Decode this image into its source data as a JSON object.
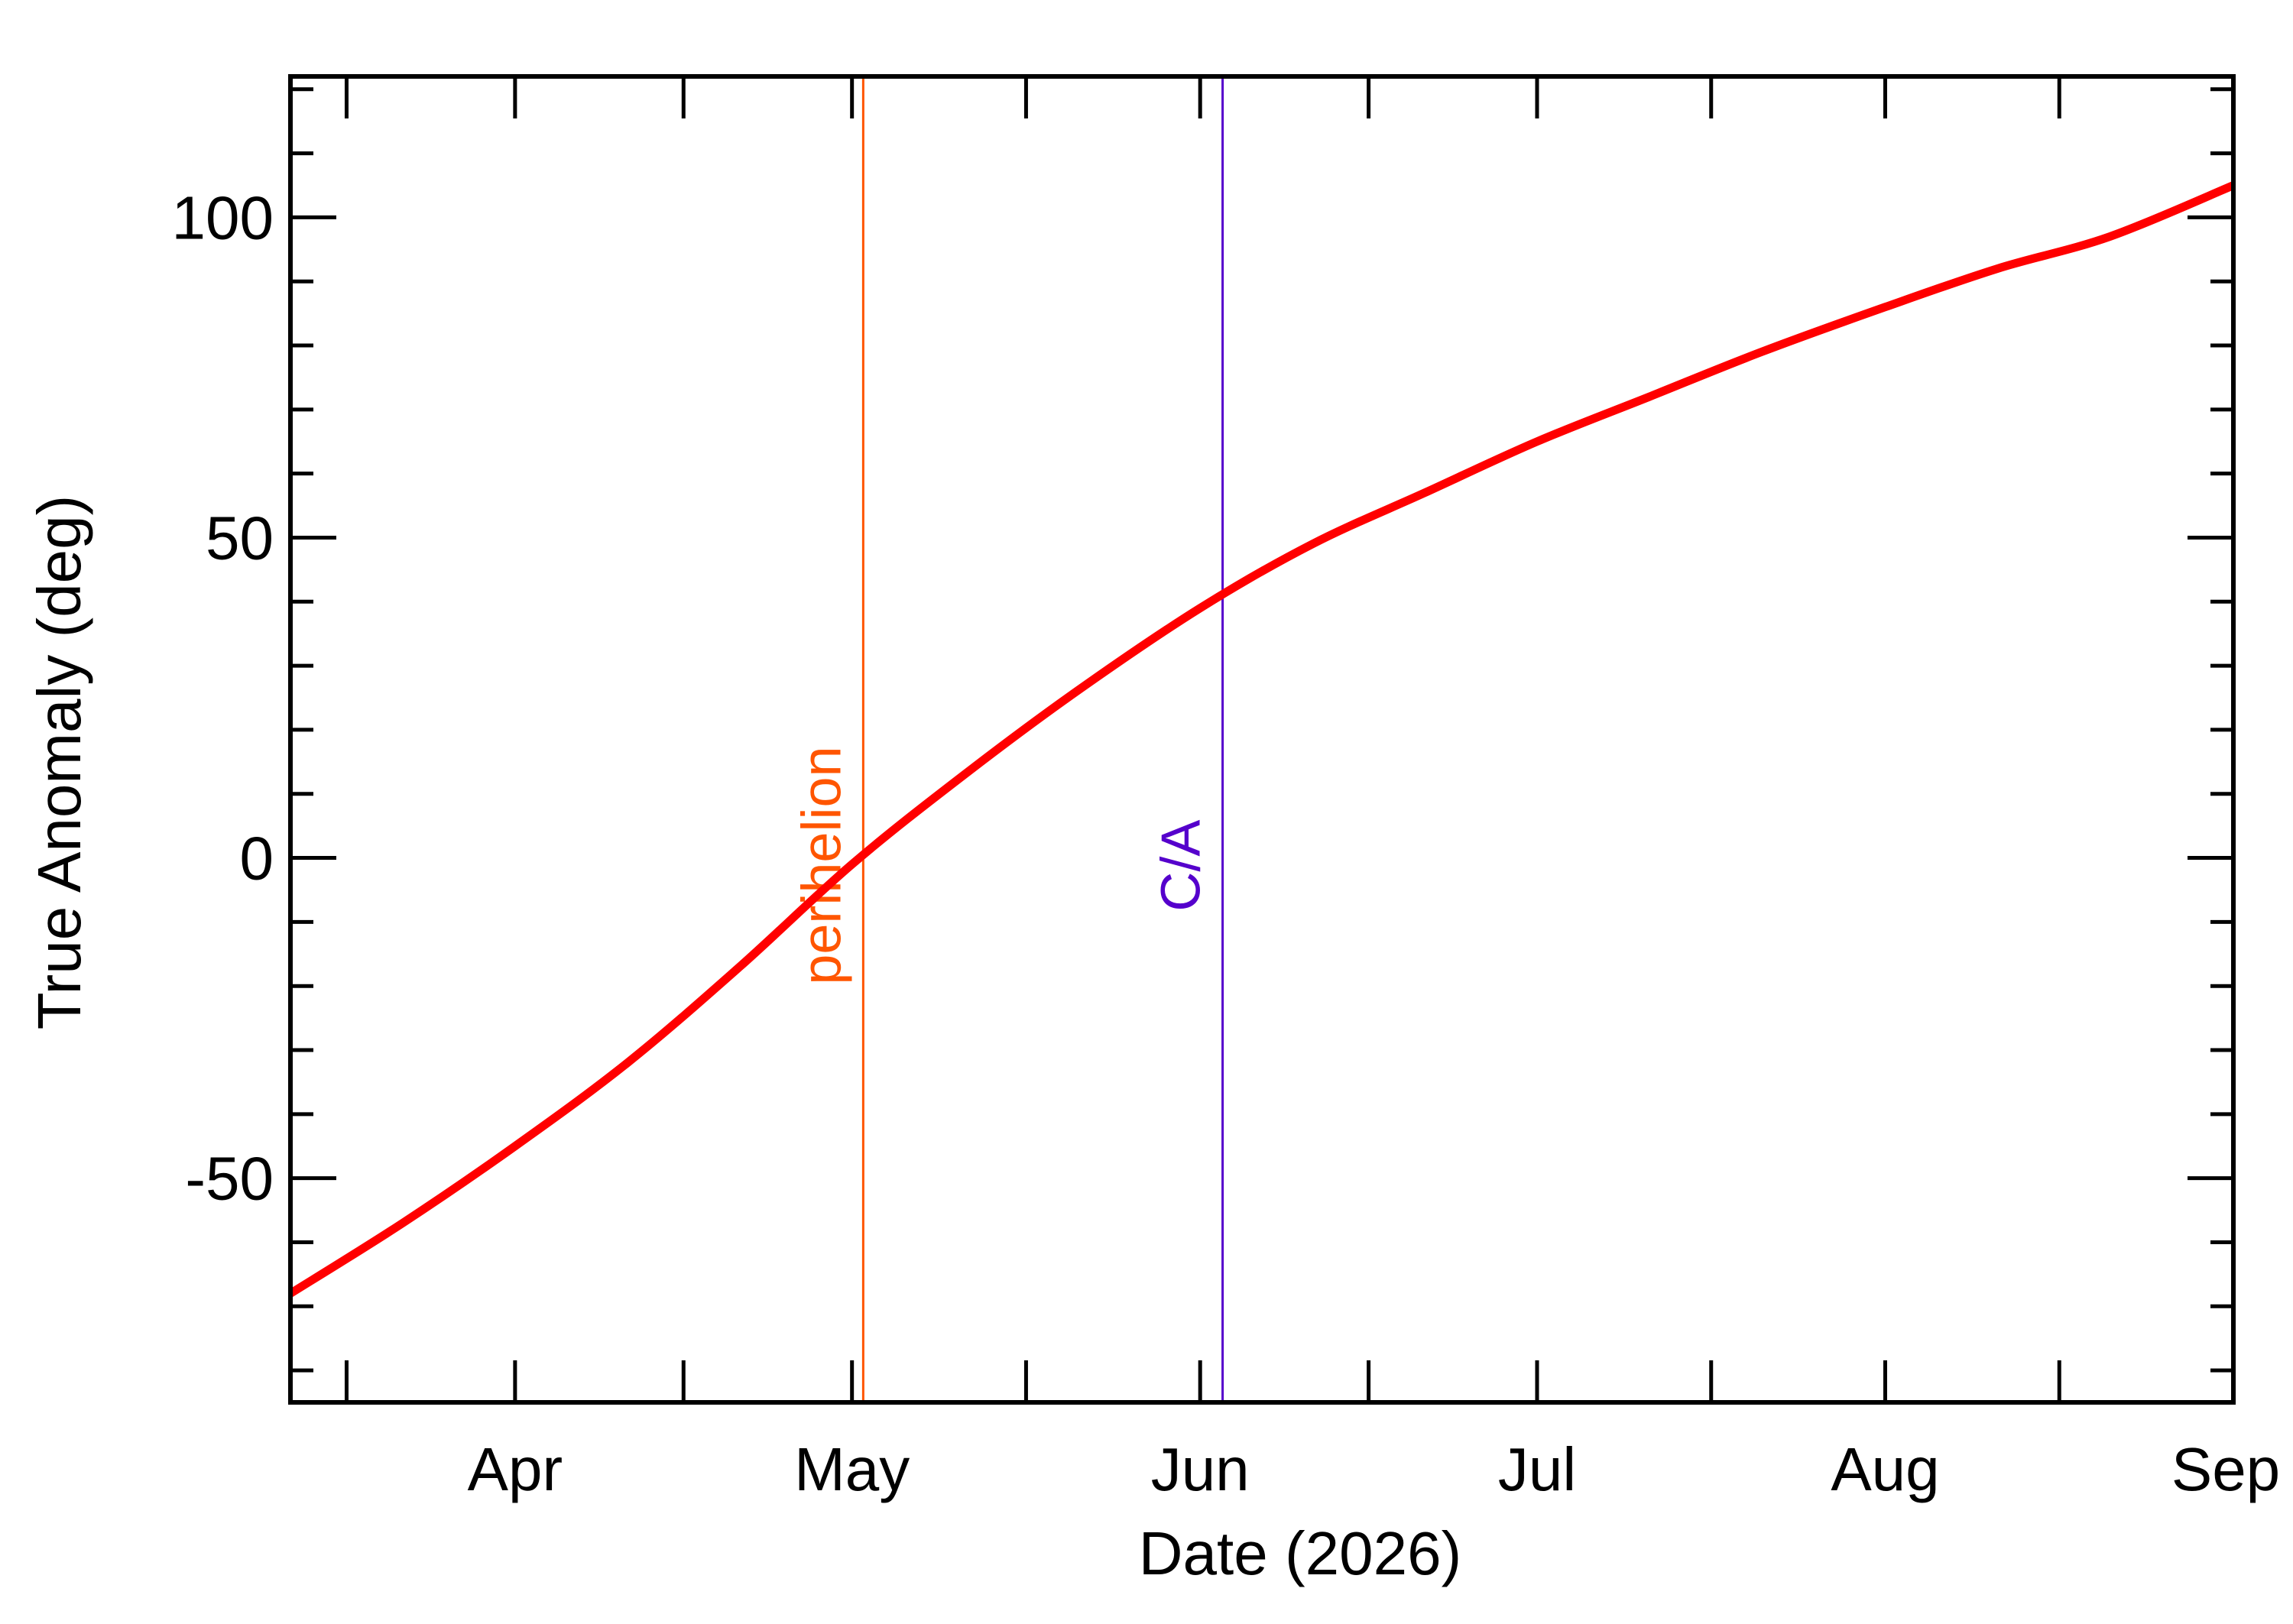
{
  "chart_data": {
    "type": "line",
    "xlabel": "Date (2026)",
    "ylabel": "True Anomaly (deg)",
    "x_range": [
      "2026-03-12",
      "2026-09-01"
    ],
    "ylim": [
      -85,
      122
    ],
    "x_ticks": [
      {
        "date": "2026-04-01",
        "label": "Apr"
      },
      {
        "date": "2026-05-01",
        "label": "May"
      },
      {
        "date": "2026-06-01",
        "label": "Jun"
      },
      {
        "date": "2026-07-01",
        "label": "Jul"
      },
      {
        "date": "2026-08-01",
        "label": "Aug"
      },
      {
        "date": "2026-09-01",
        "label": "Sep"
      }
    ],
    "y_ticks": [
      {
        "value": 100,
        "label": "100"
      },
      {
        "value": 50,
        "label": "50"
      },
      {
        "value": 0,
        "label": "0"
      },
      {
        "value": -50,
        "label": "-50"
      }
    ],
    "y_minor_step": 10,
    "series": [
      {
        "color": "#ff0000",
        "points": [
          {
            "x": "2026-03-12",
            "y": -68
          },
          {
            "x": "2026-03-22",
            "y": -57
          },
          {
            "x": "2026-04-01",
            "y": -45
          },
          {
            "x": "2026-04-11",
            "y": -32
          },
          {
            "x": "2026-04-21",
            "y": -17
          },
          {
            "x": "2026-05-01",
            "y": -1
          },
          {
            "x": "2026-05-11",
            "y": 13
          },
          {
            "x": "2026-05-21",
            "y": 26
          },
          {
            "x": "2026-06-01",
            "y": 39
          },
          {
            "x": "2026-06-11",
            "y": 49
          },
          {
            "x": "2026-06-21",
            "y": 57
          },
          {
            "x": "2026-07-01",
            "y": 65
          },
          {
            "x": "2026-07-11",
            "y": 72
          },
          {
            "x": "2026-07-21",
            "y": 79
          },
          {
            "x": "2026-08-01",
            "y": 86
          },
          {
            "x": "2026-08-11",
            "y": 92
          },
          {
            "x": "2026-08-21",
            "y": 97
          },
          {
            "x": "2026-09-01",
            "y": 105
          }
        ]
      }
    ],
    "markers": [
      {
        "label": "perihelion",
        "date": "2026-05-02",
        "color": "#ff5500"
      },
      {
        "label": "C/A",
        "date": "2026-06-03",
        "color": "#5500cc"
      }
    ],
    "grid": false
  }
}
